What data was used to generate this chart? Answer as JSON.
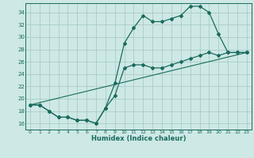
{
  "title": "",
  "xlabel": "Humidex (Indice chaleur)",
  "xlim": [
    -0.5,
    23.5
  ],
  "ylim": [
    15.0,
    35.5
  ],
  "xticks": [
    0,
    1,
    2,
    3,
    4,
    5,
    6,
    7,
    8,
    9,
    10,
    11,
    12,
    13,
    14,
    15,
    16,
    17,
    18,
    19,
    20,
    21,
    22,
    23
  ],
  "yticks": [
    16,
    18,
    20,
    22,
    24,
    26,
    28,
    30,
    32,
    34
  ],
  "background_color": "#cde8e5",
  "grid_color": "#a8ccc9",
  "line_color": "#1a6b5e",
  "line1_x": [
    0,
    1,
    2,
    3,
    4,
    5,
    6,
    7,
    8,
    9,
    10,
    11,
    12,
    13,
    14,
    15,
    16,
    17,
    18,
    19,
    20,
    21,
    22,
    23
  ],
  "line1_y": [
    19.0,
    19.0,
    18.0,
    17.0,
    17.0,
    16.5,
    16.5,
    16.0,
    18.5,
    20.5,
    25.0,
    25.5,
    25.5,
    25.0,
    25.0,
    25.5,
    26.0,
    26.5,
    27.0,
    27.5,
    27.0,
    27.5,
    27.5,
    27.5
  ],
  "line2_x": [
    0,
    1,
    2,
    3,
    4,
    5,
    6,
    7,
    8,
    9,
    10,
    11,
    12,
    13,
    14,
    15,
    16,
    17,
    18,
    19,
    20,
    21,
    22,
    23
  ],
  "line2_y": [
    19.0,
    19.0,
    18.0,
    17.0,
    17.0,
    16.5,
    16.5,
    16.0,
    18.5,
    22.5,
    29.0,
    31.5,
    33.5,
    32.5,
    32.5,
    33.0,
    33.5,
    35.0,
    35.0,
    34.0,
    30.5,
    27.5,
    27.5,
    27.5
  ],
  "line3_x": [
    0,
    23
  ],
  "line3_y": [
    19.0,
    27.5
  ]
}
